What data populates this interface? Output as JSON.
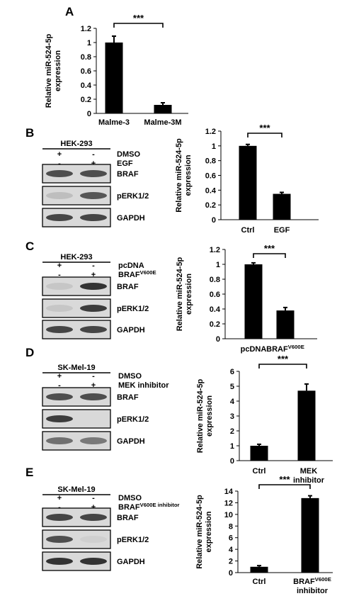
{
  "colors": {
    "bar": "#000000",
    "axis": "#000000",
    "blot_bg": "#d9d9d9",
    "band": "#2a2a2a"
  },
  "chart_data": [
    {
      "id": "A",
      "type": "bar",
      "title": "",
      "ylabel": "Relative miR-524-5p expression",
      "categories": [
        "Malme-3",
        "Malme-3M"
      ],
      "values": [
        1.0,
        0.12
      ],
      "errors": [
        0.09,
        0.03
      ],
      "ylim": [
        0,
        1.2
      ],
      "yticks": [
        "0",
        "0.2",
        "0.4",
        "0.6",
        "0.8",
        "1",
        "1.2"
      ],
      "significance": "***",
      "grid": false,
      "legend": "none"
    },
    {
      "id": "B",
      "type": "bar",
      "title": "",
      "ylabel": "Relative miR-524-5p expression",
      "categories": [
        "Ctrl",
        "EGF"
      ],
      "values": [
        1.0,
        0.35
      ],
      "errors": [
        0.02,
        0.02
      ],
      "ylim": [
        0,
        1.2
      ],
      "yticks": [
        "0",
        "0.2",
        "0.4",
        "0.6",
        "0.8",
        "1",
        "1.2"
      ],
      "significance": "***",
      "grid": false,
      "legend": "none"
    },
    {
      "id": "C",
      "type": "bar",
      "title": "",
      "ylabel": "Relative miR-524-5p expression",
      "categories": [
        "pcDNA",
        "BRAF^V600E"
      ],
      "values": [
        1.0,
        0.38
      ],
      "errors": [
        0.02,
        0.04
      ],
      "ylim": [
        0,
        1.2
      ],
      "yticks": [
        "0",
        "0.2",
        "0.4",
        "0.6",
        "0.8",
        "1",
        "1.2"
      ],
      "significance": "***",
      "grid": false,
      "legend": "none"
    },
    {
      "id": "D",
      "type": "bar",
      "title": "",
      "ylabel": "Relative miR-524-5p expression",
      "categories": [
        "Ctrl",
        "MEK inhibitor"
      ],
      "values": [
        1.0,
        4.7
      ],
      "errors": [
        0.1,
        0.45
      ],
      "ylim": [
        0,
        6
      ],
      "yticks": [
        "0",
        "1",
        "2",
        "3",
        "4",
        "5",
        "6"
      ],
      "significance": "***",
      "grid": false,
      "legend": "none"
    },
    {
      "id": "E",
      "type": "bar",
      "title": "",
      "ylabel": "Relative miR-524-5p expression",
      "categories": [
        "Ctrl",
        "BRAF^V600E inhibitor"
      ],
      "values": [
        1.0,
        12.8
      ],
      "errors": [
        0.2,
        0.4
      ],
      "ylim": [
        0,
        14
      ],
      "yticks": [
        "0",
        "2",
        "4",
        "6",
        "8",
        "10",
        "12",
        "14"
      ],
      "significance": "***",
      "grid": false,
      "legend": "none"
    }
  ],
  "blots": [
    {
      "id": "B",
      "cell_line": "HEK-293",
      "conditions": [
        {
          "label": "DMSO",
          "marks": [
            "+",
            "-"
          ]
        },
        {
          "label": "EGF",
          "marks": [
            "-",
            "+"
          ]
        }
      ],
      "proteins": [
        {
          "label": "BRAF",
          "bands": [
            0.8,
            0.8
          ]
        },
        {
          "label": "pERK1/2",
          "bands": [
            0.15,
            0.75
          ]
        },
        {
          "label": "GAPDH",
          "bands": [
            0.85,
            0.85
          ]
        }
      ]
    },
    {
      "id": "C",
      "cell_line": "HEK-293",
      "conditions": [
        {
          "label": "pcDNA",
          "marks": [
            "+",
            "-"
          ]
        },
        {
          "label": "BRAF^V600E",
          "marks": [
            "-",
            "+"
          ]
        }
      ],
      "proteins": [
        {
          "label": "BRAF",
          "bands": [
            0.1,
            0.95
          ]
        },
        {
          "label": "pERK1/2",
          "bands": [
            0.1,
            0.9
          ]
        },
        {
          "label": "GAPDH",
          "bands": [
            0.85,
            0.85
          ]
        }
      ]
    },
    {
      "id": "D",
      "cell_line": "SK-Mel-19",
      "conditions": [
        {
          "label": "DMSO",
          "marks": [
            "+",
            "-"
          ]
        },
        {
          "label": "MEK inhibitor",
          "marks": [
            "-",
            "+"
          ]
        }
      ],
      "proteins": [
        {
          "label": "BRAF",
          "bands": [
            0.8,
            0.8
          ]
        },
        {
          "label": "pERK1/2",
          "bands": [
            0.9,
            0.0
          ]
        },
        {
          "label": "GAPDH",
          "bands": [
            0.6,
            0.55
          ]
        }
      ]
    },
    {
      "id": "E",
      "cell_line": "SK-Mel-19",
      "conditions": [
        {
          "label": "DMSO",
          "marks": [
            "+",
            "-"
          ]
        },
        {
          "label": "BRAF^V600E inhibitor",
          "marks": [
            "-",
            "+"
          ]
        }
      ],
      "proteins": [
        {
          "label": "BRAF",
          "bands": [
            0.85,
            0.85
          ]
        },
        {
          "label": "pERK1/2",
          "bands": [
            0.8,
            0.05
          ]
        },
        {
          "label": "GAPDH",
          "bands": [
            0.95,
            0.95
          ]
        }
      ]
    }
  ]
}
